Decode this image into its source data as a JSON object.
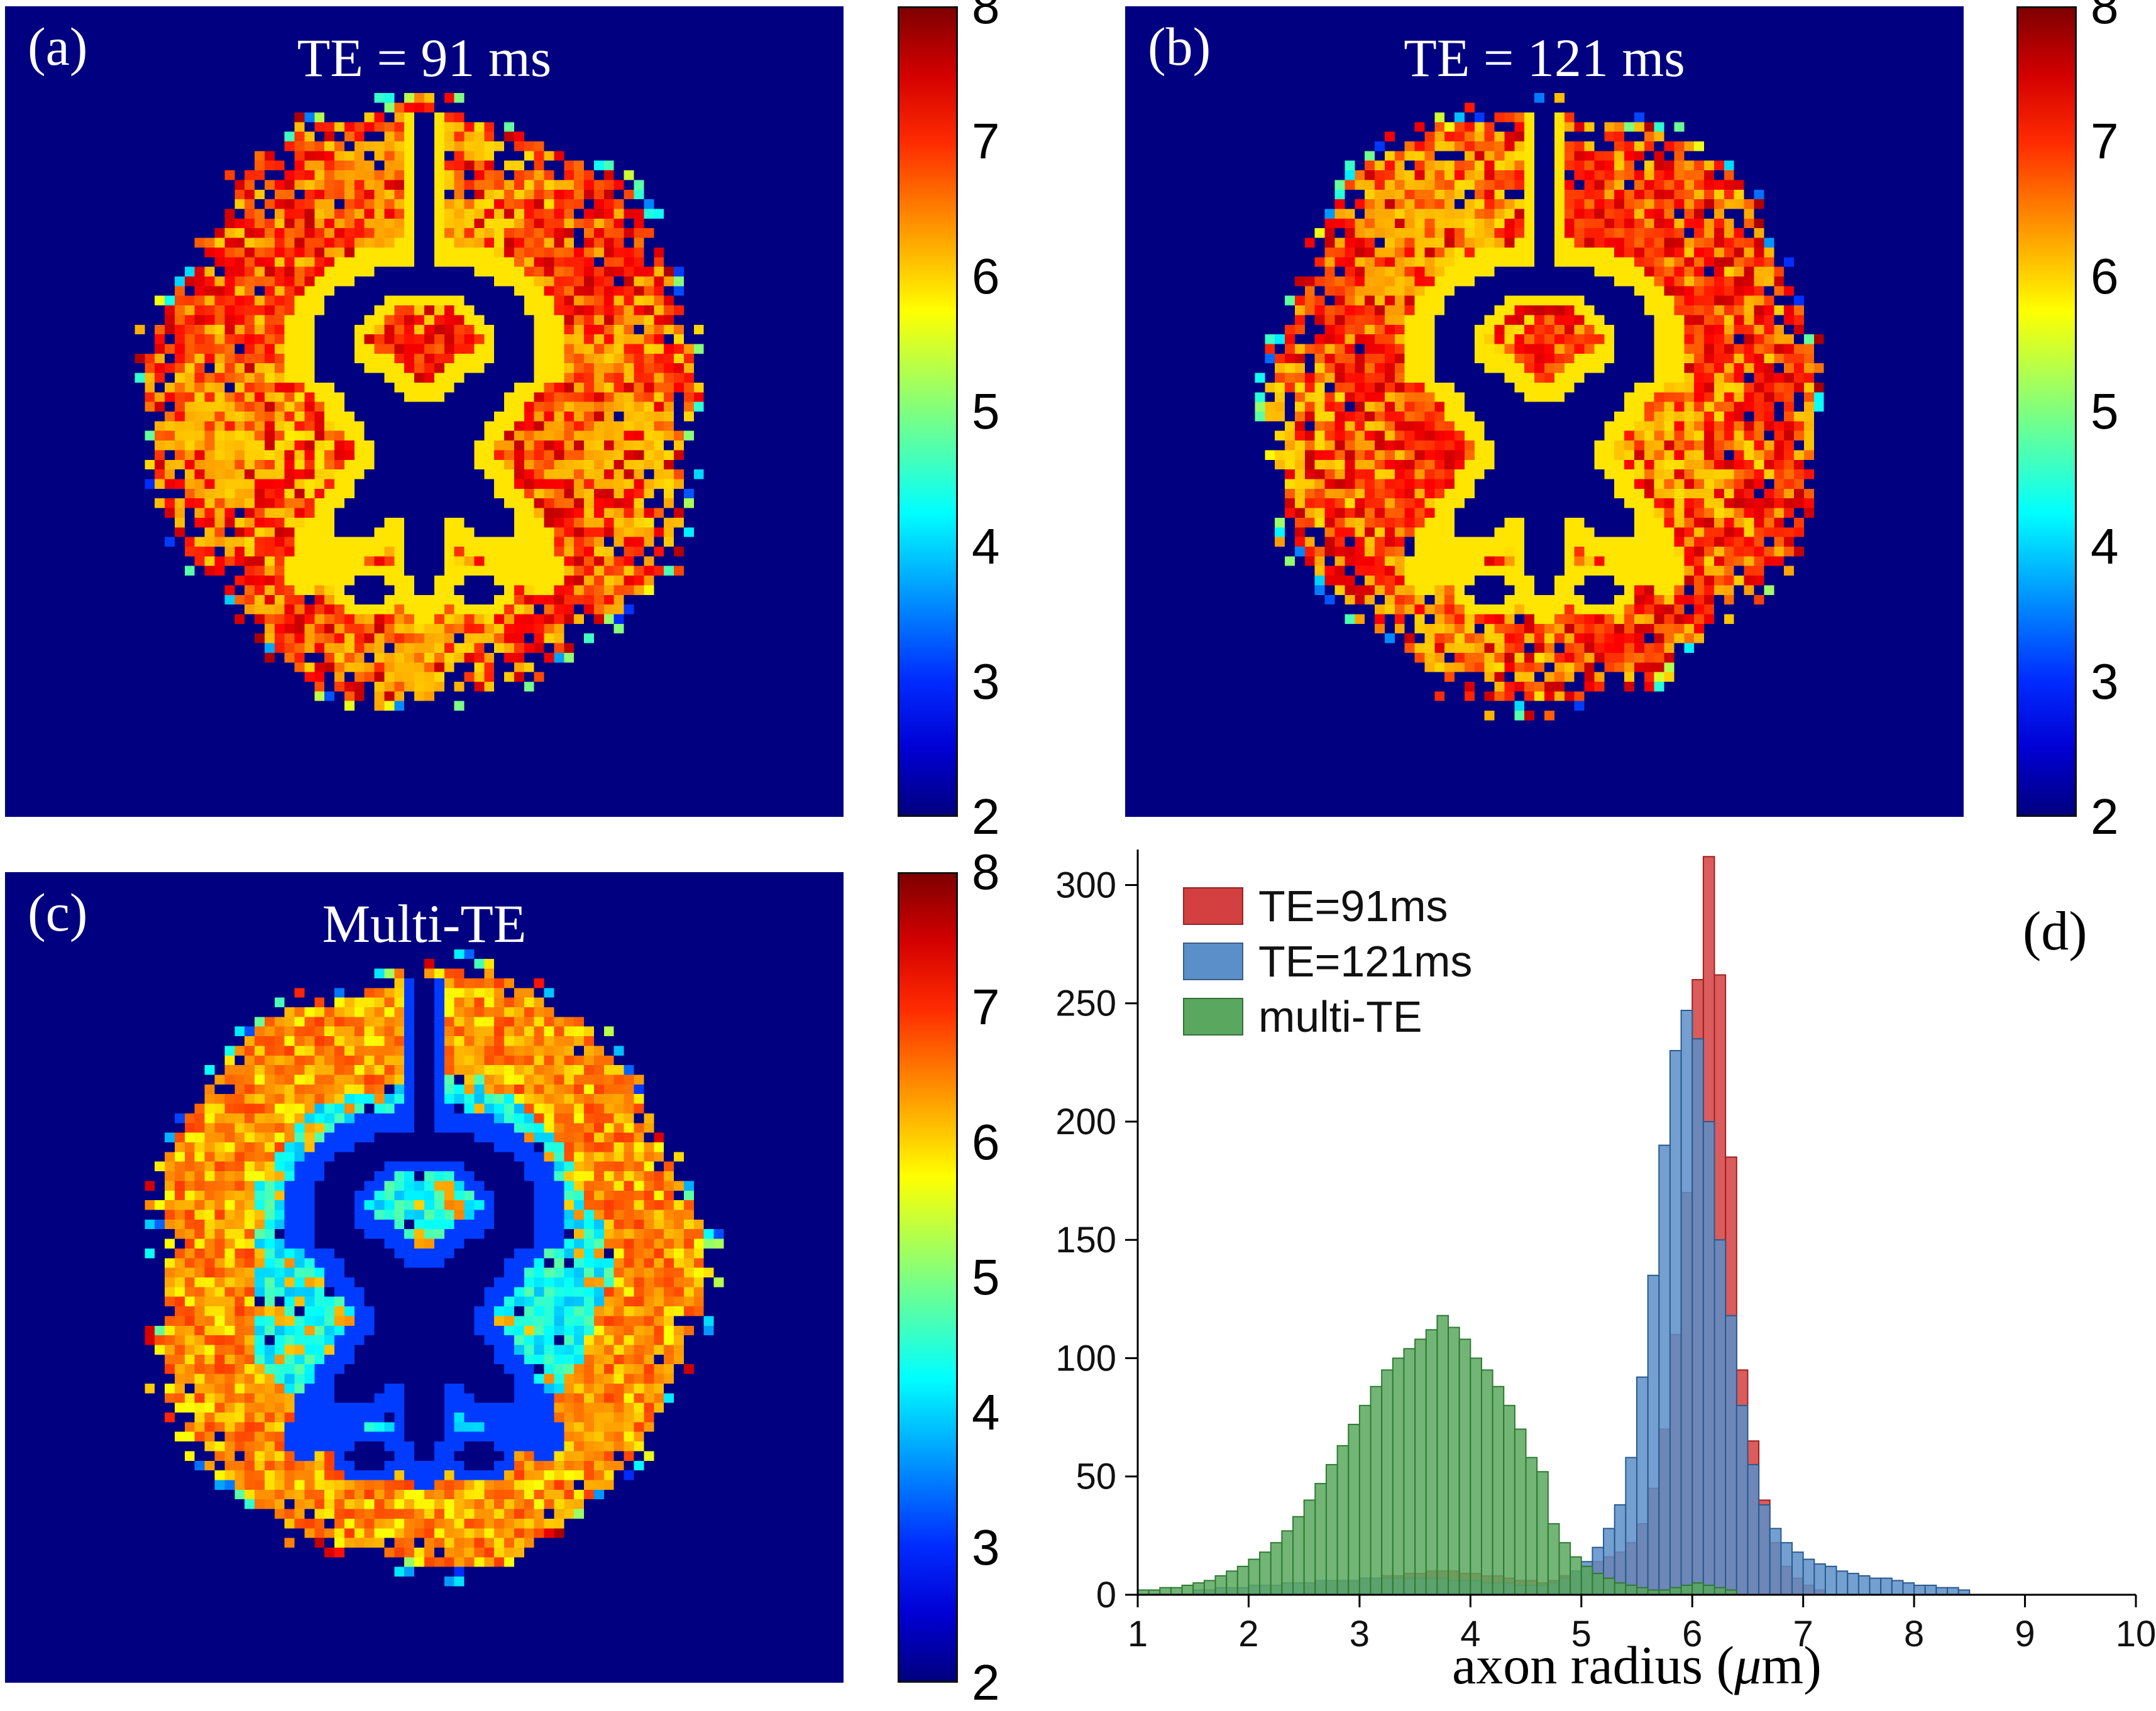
{
  "figure": {
    "background": "#ffffff",
    "map_background_value": 2
  },
  "colorbar": {
    "min": 2,
    "max": 8,
    "ticks": [
      8,
      7,
      6,
      5,
      4,
      3,
      2
    ]
  },
  "panels": [
    {
      "id": "a",
      "label": "(a)",
      "title": "TE = 91 ms",
      "map_type": "high"
    },
    {
      "id": "b",
      "label": "(b)",
      "title": "TE = 121 ms",
      "map_type": "high"
    },
    {
      "id": "c",
      "label": "(c)",
      "title": "Multi-TE",
      "map_type": "low-interior"
    }
  ],
  "chart_data": {
    "type": "histogram",
    "panel_label": "(d)",
    "xlabel": "axon radius (μm)",
    "xlabel_parts": {
      "pre": "axon radius  (",
      "mu": "μ",
      "post": "m)"
    },
    "xlim": [
      1,
      10
    ],
    "ylim": [
      0,
      315
    ],
    "xticks": [
      1,
      2,
      3,
      4,
      5,
      6,
      7,
      8,
      9,
      10
    ],
    "yticks": [
      0,
      50,
      100,
      150,
      200,
      250,
      300
    ],
    "bin_width": 0.1,
    "grid": false,
    "legend_position": "top-left",
    "legend": [
      {
        "label": "TE=91ms",
        "color": "#d43f3f"
      },
      {
        "label": "TE=121ms",
        "color": "#5b8fc9"
      },
      {
        "label": "multi-TE",
        "color": "#5aa85f"
      }
    ],
    "series": [
      {
        "name": "TE=91ms",
        "color": "#d43f3f",
        "edge": "#a02020",
        "bin_start": 2.5,
        "counts": [
          4,
          5,
          5,
          6,
          6,
          7,
          7,
          8,
          8,
          9,
          9,
          10,
          10,
          10,
          9,
          9,
          8,
          8,
          7,
          6,
          6,
          5,
          6,
          8,
          10,
          12,
          14,
          16,
          18,
          22,
          30,
          45,
          70,
          110,
          170,
          260,
          312,
          262,
          185,
          95,
          65,
          40,
          22,
          12,
          7,
          4,
          2
        ]
      },
      {
        "name": "TE=121ms",
        "color": "#5b8fc9",
        "edge": "#2a5a8c",
        "bin_start": 1.5,
        "counts": [
          2,
          2,
          3,
          3,
          3,
          4,
          4,
          4,
          5,
          5,
          5,
          6,
          6,
          6,
          6,
          7,
          7,
          7,
          7,
          7,
          7,
          7,
          7,
          6,
          6,
          6,
          5,
          5,
          5,
          4,
          4,
          4,
          5,
          7,
          10,
          14,
          20,
          28,
          38,
          58,
          92,
          135,
          190,
          230,
          247,
          235,
          200,
          150,
          118,
          80,
          55,
          38,
          28,
          22,
          18,
          15,
          13,
          12,
          10,
          9,
          8,
          7,
          7,
          6,
          5,
          4,
          4,
          3,
          3,
          2
        ]
      },
      {
        "name": "multi-TE",
        "color": "#5aa85f",
        "edge": "#2f7a33",
        "bin_start": 1.0,
        "counts": [
          2,
          2,
          3,
          3,
          4,
          5,
          6,
          8,
          10,
          12,
          15,
          18,
          22,
          27,
          33,
          40,
          47,
          55,
          63,
          72,
          80,
          88,
          95,
          100,
          104,
          108,
          112,
          118,
          113,
          108,
          100,
          95,
          88,
          80,
          70,
          58,
          52,
          30,
          22,
          16,
          12,
          9,
          7,
          5,
          4,
          3,
          2,
          2,
          3,
          4,
          5,
          4,
          3,
          2
        ]
      }
    ]
  }
}
